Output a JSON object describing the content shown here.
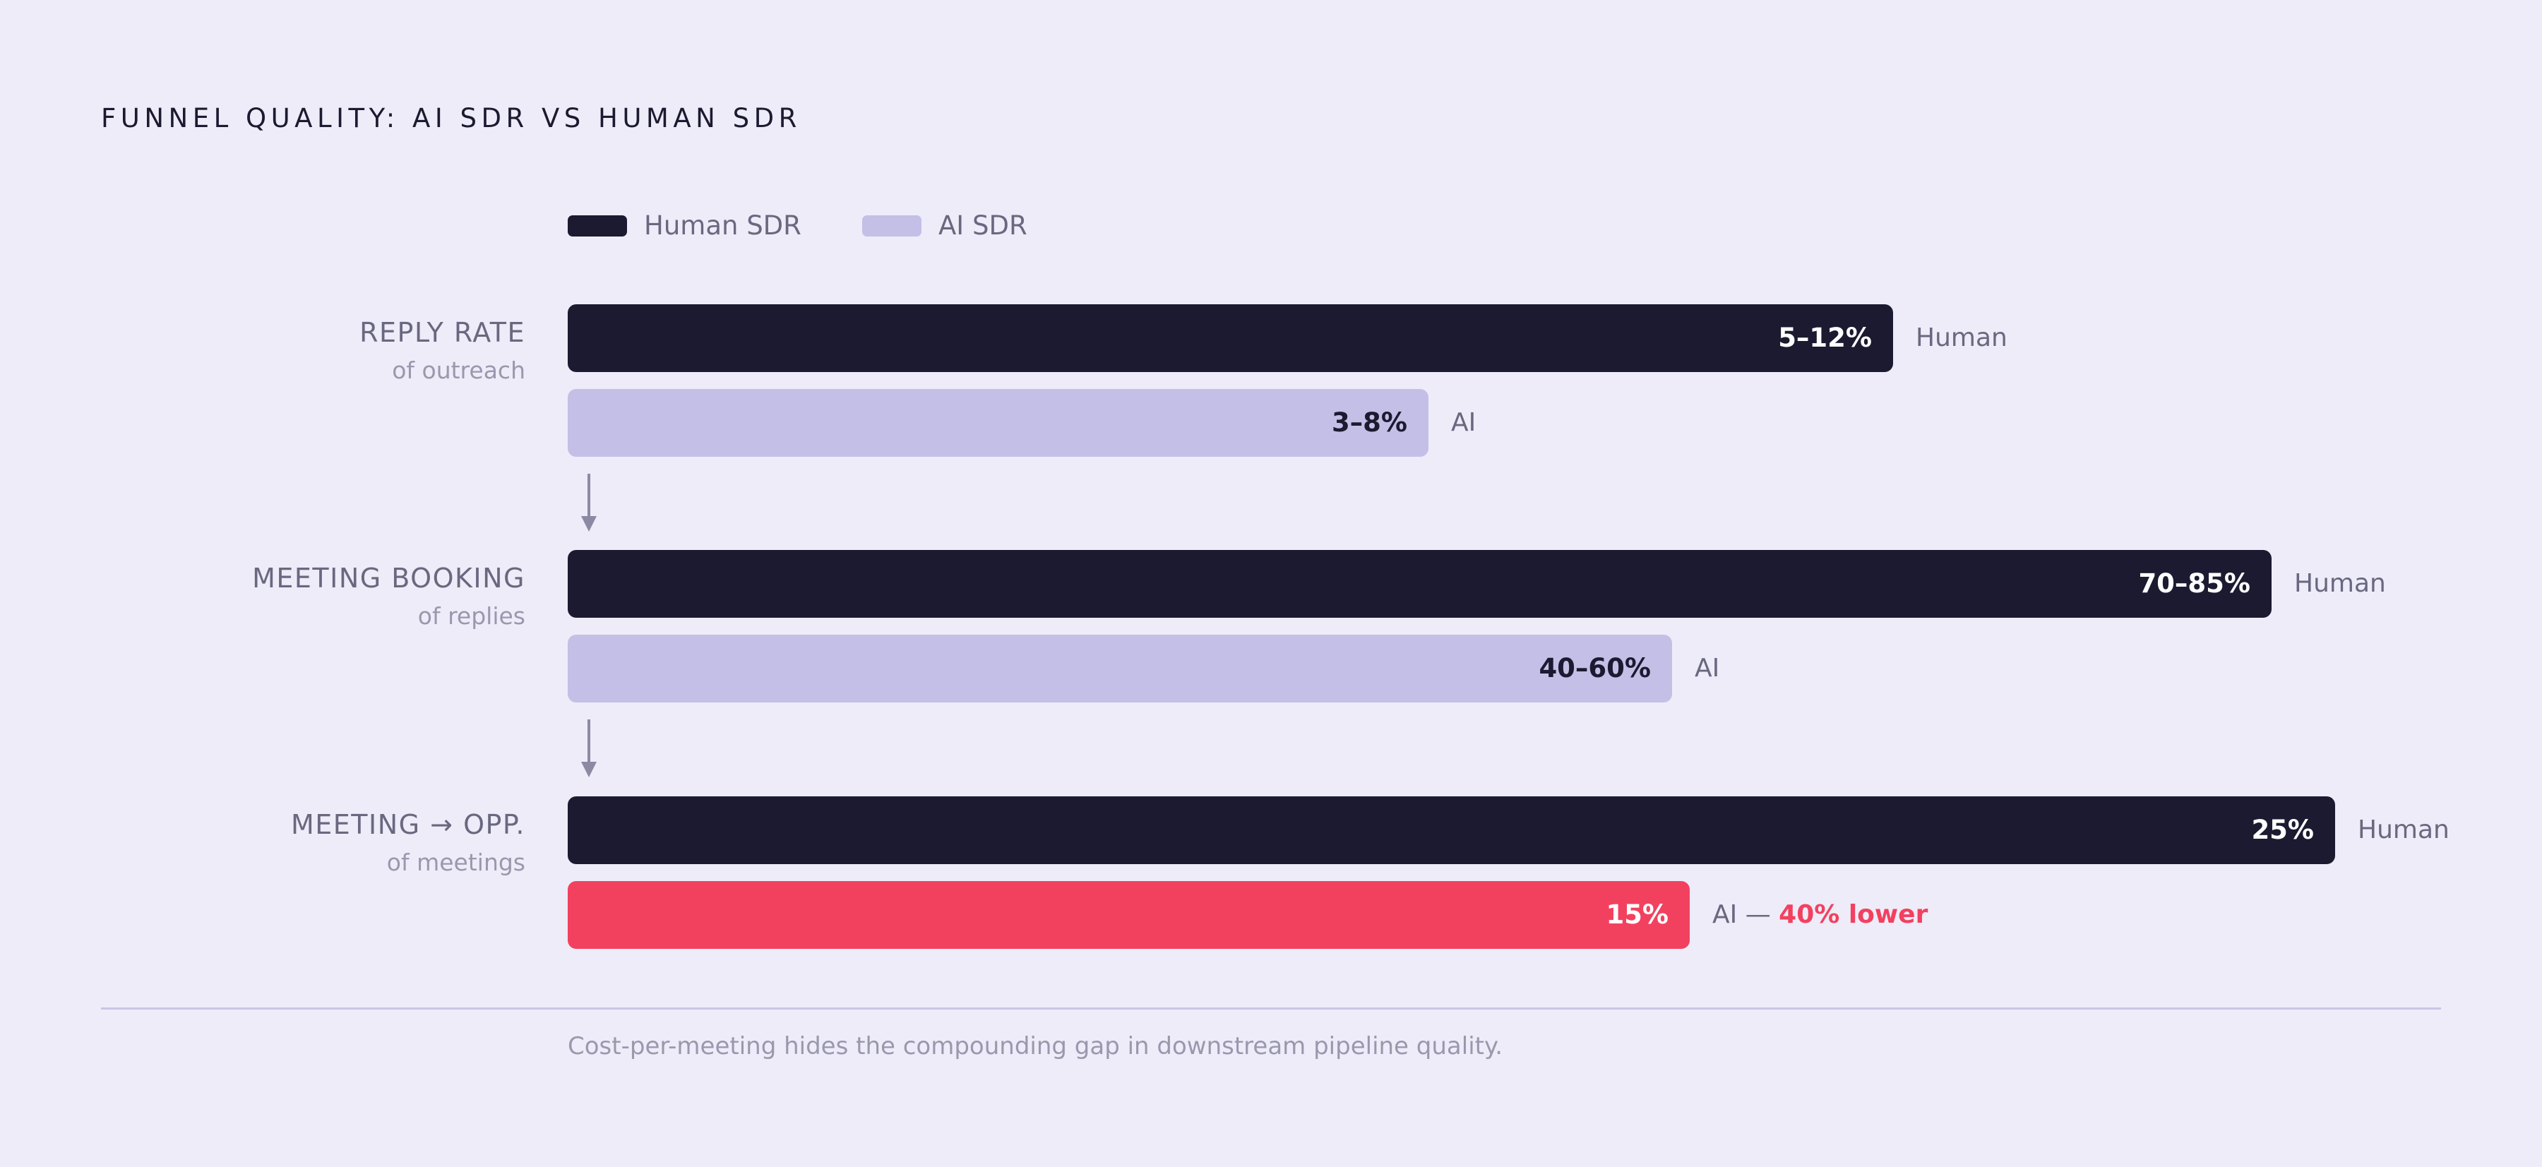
{
  "title": "FUNNEL QUALITY: AI SDR VS HUMAN SDR",
  "legend": [
    {
      "label": "Human SDR",
      "color": "#1b1a30"
    },
    {
      "label": "AI SDR",
      "color": "#c3bfe6"
    }
  ],
  "colors": {
    "human": "#1b1a30",
    "ai": "#c3bfe6",
    "highlight": "#f2415f",
    "background": "#eeecf8"
  },
  "chart_data": {
    "type": "bar",
    "orientation": "horizontal",
    "title": "FUNNEL QUALITY: AI SDR VS HUMAN SDR",
    "categories": [
      "REPLY RATE",
      "MEETING BOOKING",
      "MEETING → OPP."
    ],
    "subtitles": [
      "of outreach",
      "of replies",
      "of meetings"
    ],
    "series": [
      {
        "name": "Human SDR",
        "values": [
          0.75,
          0.964,
          1.0
        ],
        "labels": [
          "5–12%",
          "70–85%",
          "25%"
        ],
        "tags": [
          "Human",
          "Human",
          "Human"
        ]
      },
      {
        "name": "AI SDR",
        "values": [
          0.487,
          0.625,
          0.635
        ],
        "labels": [
          "3–8%",
          "40–60%",
          "15%"
        ],
        "tags": [
          "AI",
          "AI",
          "AI — "
        ],
        "highlight": [
          false,
          false,
          true
        ]
      }
    ],
    "annotation": "40% lower",
    "grid": false,
    "legend_position": "top-left"
  },
  "footnote": "Cost-per-meeting hides the compounding gap in downstream pipeline quality."
}
